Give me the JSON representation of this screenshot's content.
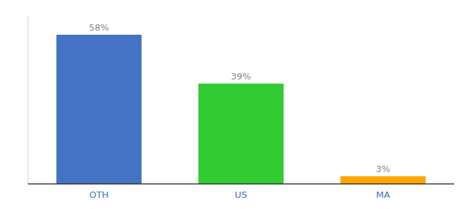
{
  "chart_data": {
    "type": "bar",
    "categories": [
      "OTH",
      "US",
      "MA"
    ],
    "values": [
      58,
      39,
      3
    ],
    "value_labels": [
      "58%",
      "39%",
      "3%"
    ],
    "colors": [
      "#4472C4",
      "#33CC33",
      "#FFA500"
    ],
    "ylim": [
      0,
      65
    ],
    "data_labels": true,
    "tick_labels": "x",
    "grid": false
  }
}
